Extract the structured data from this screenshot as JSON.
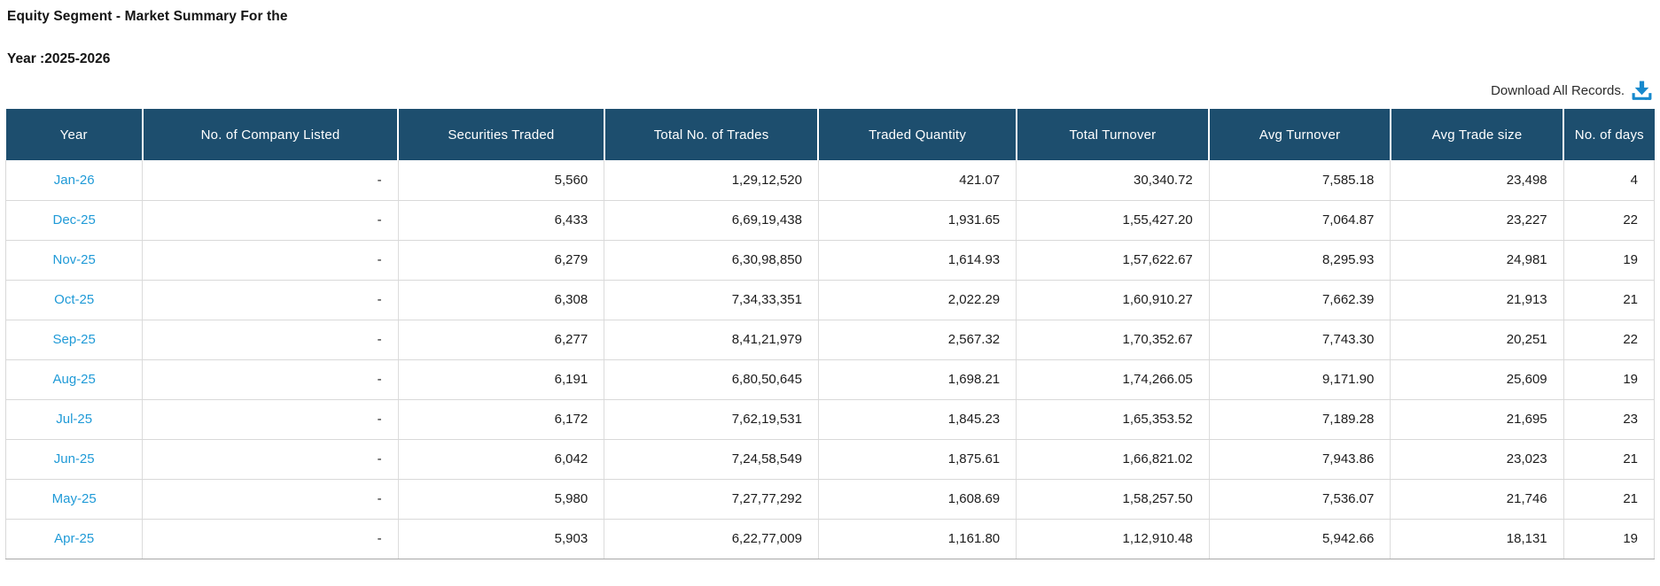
{
  "page": {
    "title_line1": "Equity Segment - Market Summary For the",
    "title_line2": "Year :2025-2026",
    "download_label": "Download All Records."
  },
  "colors": {
    "header_bg": "#1d4e6e",
    "month_link_blue": "#1f9ad7",
    "download_icon_blue": "#1789cd",
    "row_border": "#d9d9d9"
  },
  "icons": [
    "download-icon"
  ],
  "table": {
    "columns": [
      {
        "key": "year",
        "label": "Year"
      },
      {
        "key": "no-of-company-listed",
        "label": "No. of Company Listed"
      },
      {
        "key": "securities-traded",
        "label": "Securities Traded"
      },
      {
        "key": "total-no-of-trades",
        "label": "Total No. of Trades"
      },
      {
        "key": "traded-quantity",
        "label": "Traded Quantity"
      },
      {
        "key": "total-turnover",
        "label": "Total Turnover"
      },
      {
        "key": "avg-turnover",
        "label": "Avg Turnover"
      },
      {
        "key": "avg-trade-size",
        "label": "Avg Trade size"
      },
      {
        "key": "no-of-days",
        "label": "No. of days"
      }
    ],
    "rows": [
      {
        "month": "Jan-26",
        "cells": [
          "-",
          "5,560",
          "1,29,12,520",
          "421.07",
          "30,340.72",
          "7,585.18",
          "23,498",
          "4"
        ]
      },
      {
        "month": "Dec-25",
        "cells": [
          "-",
          "6,433",
          "6,69,19,438",
          "1,931.65",
          "1,55,427.20",
          "7,064.87",
          "23,227",
          "22"
        ]
      },
      {
        "month": "Nov-25",
        "cells": [
          "-",
          "6,279",
          "6,30,98,850",
          "1,614.93",
          "1,57,622.67",
          "8,295.93",
          "24,981",
          "19"
        ]
      },
      {
        "month": "Oct-25",
        "cells": [
          "-",
          "6,308",
          "7,34,33,351",
          "2,022.29",
          "1,60,910.27",
          "7,662.39",
          "21,913",
          "21"
        ]
      },
      {
        "month": "Sep-25",
        "cells": [
          "-",
          "6,277",
          "8,41,21,979",
          "2,567.32",
          "1,70,352.67",
          "7,743.30",
          "20,251",
          "22"
        ]
      },
      {
        "month": "Aug-25",
        "cells": [
          "-",
          "6,191",
          "6,80,50,645",
          "1,698.21",
          "1,74,266.05",
          "9,171.90",
          "25,609",
          "19"
        ]
      },
      {
        "month": "Jul-25",
        "cells": [
          "-",
          "6,172",
          "7,62,19,531",
          "1,845.23",
          "1,65,353.52",
          "7,189.28",
          "21,695",
          "23"
        ]
      },
      {
        "month": "Jun-25",
        "cells": [
          "-",
          "6,042",
          "7,24,58,549",
          "1,875.61",
          "1,66,821.02",
          "7,943.86",
          "23,023",
          "21"
        ]
      },
      {
        "month": "May-25",
        "cells": [
          "-",
          "5,980",
          "7,27,77,292",
          "1,608.69",
          "1,58,257.50",
          "7,536.07",
          "21,746",
          "21"
        ]
      },
      {
        "month": "Apr-25",
        "cells": [
          "-",
          "5,903",
          "6,22,77,009",
          "1,161.80",
          "1,12,910.48",
          "5,942.66",
          "18,131",
          "19"
        ]
      }
    ]
  }
}
